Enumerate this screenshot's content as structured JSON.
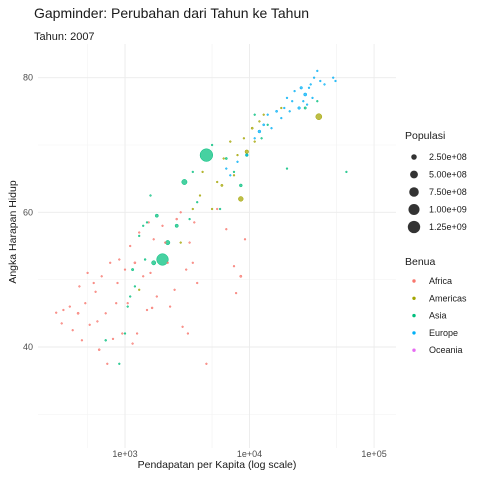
{
  "chart_data": {
    "type": "scatter",
    "title": "Gapminder: Perubahan dari Tahun ke Tahun",
    "subtitle": "Tahun: 2007",
    "xlabel": "Pendapatan per Kapita (log scale)",
    "ylabel": "Angka Harapan Hidup",
    "x_scale": "log10",
    "xlim": [
      200,
      150000
    ],
    "ylim": [
      25,
      85
    ],
    "x_ticks": [
      1000,
      10000,
      100000
    ],
    "x_tick_labels": [
      "1e+03",
      "1e+04",
      "1e+05"
    ],
    "y_ticks": [
      40,
      60,
      80
    ],
    "y_tick_labels": [
      "40",
      "60",
      "80"
    ],
    "grid": true,
    "legend_position": "right",
    "size_legend": {
      "title": "Populasi",
      "entries": [
        {
          "label": "2.50e+08",
          "value": 250000000
        },
        {
          "label": "5.00e+08",
          "value": 500000000
        },
        {
          "label": "7.50e+08",
          "value": 750000000
        },
        {
          "label": "1.00e+09",
          "value": 1000000000
        },
        {
          "label": "1.25e+09",
          "value": 1250000000
        }
      ]
    },
    "color_legend": {
      "title": "Benua",
      "entries": [
        {
          "label": "Africa",
          "color": "#F8766D"
        },
        {
          "label": "Americas",
          "color": "#A3A500"
        },
        {
          "label": "Asia",
          "color": "#00BF7D"
        },
        {
          "label": "Europe",
          "color": "#00B0F6"
        },
        {
          "label": "Oceania",
          "color": "#E76BF3"
        }
      ]
    },
    "series": [
      {
        "name": "Africa",
        "color": "#F8766D",
        "points": [
          {
            "x": 280,
            "y": 45.1,
            "pop": 20000000
          },
          {
            "x": 310,
            "y": 43.5,
            "pop": 8000000
          },
          {
            "x": 320,
            "y": 45.5,
            "pop": 12000000
          },
          {
            "x": 360,
            "y": 46.0,
            "pop": 15000000
          },
          {
            "x": 380,
            "y": 42.5,
            "pop": 8000000
          },
          {
            "x": 420,
            "y": 45.0,
            "pop": 40000000
          },
          {
            "x": 430,
            "y": 49.0,
            "pop": 5000000
          },
          {
            "x": 450,
            "y": 41.0,
            "pop": 9000000
          },
          {
            "x": 480,
            "y": 46.5,
            "pop": 6000000
          },
          {
            "x": 500,
            "y": 51.0,
            "pop": 3000000
          },
          {
            "x": 520,
            "y": 43.3,
            "pop": 25000000
          },
          {
            "x": 560,
            "y": 49.5,
            "pop": 10000000
          },
          {
            "x": 580,
            "y": 48.2,
            "pop": 4000000
          },
          {
            "x": 600,
            "y": 43.8,
            "pop": 12000000
          },
          {
            "x": 620,
            "y": 39.6,
            "pop": 35000000
          },
          {
            "x": 650,
            "y": 50.5,
            "pop": 8000000
          },
          {
            "x": 700,
            "y": 45.0,
            "pop": 5000000
          },
          {
            "x": 720,
            "y": 37.5,
            "pop": 3000000
          },
          {
            "x": 760,
            "y": 52.5,
            "pop": 7000000
          },
          {
            "x": 800,
            "y": 41.2,
            "pop": 6000000
          },
          {
            "x": 850,
            "y": 46.5,
            "pop": 11000000
          },
          {
            "x": 870,
            "y": 49.5,
            "pop": 5000000
          },
          {
            "x": 900,
            "y": 53.0,
            "pop": 14000000
          },
          {
            "x": 950,
            "y": 42.0,
            "pop": 6000000
          },
          {
            "x": 1000,
            "y": 51.5,
            "pop": 9000000
          },
          {
            "x": 1050,
            "y": 46.5,
            "pop": 4000000
          },
          {
            "x": 1100,
            "y": 55.0,
            "pop": 7000000
          },
          {
            "x": 1150,
            "y": 40.5,
            "pop": 3000000
          },
          {
            "x": 1200,
            "y": 52.5,
            "pop": 38000000
          },
          {
            "x": 1250,
            "y": 42.0,
            "pop": 10000000
          },
          {
            "x": 1300,
            "y": 57.0,
            "pop": 6000000
          },
          {
            "x": 1400,
            "y": 50.5,
            "pop": 5000000
          },
          {
            "x": 1500,
            "y": 45.5,
            "pop": 20000000
          },
          {
            "x": 1550,
            "y": 58.5,
            "pop": 4000000
          },
          {
            "x": 1600,
            "y": 51.0,
            "pop": 3000000
          },
          {
            "x": 1650,
            "y": 45.8,
            "pop": 33000000
          },
          {
            "x": 1700,
            "y": 56.0,
            "pop": 3000000
          },
          {
            "x": 1800,
            "y": 47.5,
            "pop": 2000000
          },
          {
            "x": 2000,
            "y": 58.0,
            "pop": 8000000
          },
          {
            "x": 2100,
            "y": 55.5,
            "pop": 3000000
          },
          {
            "x": 2200,
            "y": 52.5,
            "pop": 3000000
          },
          {
            "x": 2300,
            "y": 46.0,
            "pop": 2000000
          },
          {
            "x": 2500,
            "y": 48.5,
            "pop": 1000000
          },
          {
            "x": 2600,
            "y": 59.0,
            "pop": 33000000
          },
          {
            "x": 2800,
            "y": 60.0,
            "pop": 12000000
          },
          {
            "x": 2900,
            "y": 43.0,
            "pop": 1500000
          },
          {
            "x": 3100,
            "y": 51.5,
            "pop": 2000000
          },
          {
            "x": 3200,
            "y": 42.0,
            "pop": 1200000
          },
          {
            "x": 3300,
            "y": 55.5,
            "pop": 2500000
          },
          {
            "x": 3500,
            "y": 52.5,
            "pop": 1000000
          },
          {
            "x": 3600,
            "y": 58.5,
            "pop": 18000000
          },
          {
            "x": 3800,
            "y": 49.5,
            "pop": 3000000
          },
          {
            "x": 4500,
            "y": 37.5,
            "pop": 9000000
          },
          {
            "x": 5500,
            "y": 60.5,
            "pop": 3000000
          },
          {
            "x": 6500,
            "y": 57.5,
            "pop": 2000000
          },
          {
            "x": 7500,
            "y": 52.0,
            "pop": 3000000
          },
          {
            "x": 7800,
            "y": 48.0,
            "pop": 2000000
          },
          {
            "x": 8500,
            "y": 50.5,
            "pop": 44000000
          },
          {
            "x": 9200,
            "y": 56.0,
            "pop": 1500000
          }
        ]
      },
      {
        "name": "Americas",
        "color": "#A3A500",
        "points": [
          {
            "x": 1300,
            "y": 48.5,
            "pop": 8000000
          },
          {
            "x": 2800,
            "y": 55.5,
            "pop": 9000000
          },
          {
            "x": 3500,
            "y": 60.5,
            "pop": 11000000
          },
          {
            "x": 4000,
            "y": 62.5,
            "pop": 15000000
          },
          {
            "x": 4200,
            "y": 66.0,
            "pop": 7000000
          },
          {
            "x": 5000,
            "y": 60.5,
            "pop": 20000000
          },
          {
            "x": 5500,
            "y": 64.5,
            "pop": 12000000
          },
          {
            "x": 6000,
            "y": 64.0,
            "pop": 44000000
          },
          {
            "x": 6200,
            "y": 68.0,
            "pop": 5000000
          },
          {
            "x": 7000,
            "y": 70.5,
            "pop": 28000000
          },
          {
            "x": 7500,
            "y": 65.5,
            "pop": 4000000
          },
          {
            "x": 8000,
            "y": 68.5,
            "pop": 9000000
          },
          {
            "x": 8500,
            "y": 62.0,
            "pop": 190000000
          },
          {
            "x": 9000,
            "y": 71.0,
            "pop": 3000000
          },
          {
            "x": 9500,
            "y": 69.0,
            "pop": 108000000
          },
          {
            "x": 10500,
            "y": 72.5,
            "pop": 40000000
          },
          {
            "x": 11000,
            "y": 70.5,
            "pop": 16000000
          },
          {
            "x": 12000,
            "y": 73.5,
            "pop": 4000000
          },
          {
            "x": 13000,
            "y": 74.5,
            "pop": 3000000
          },
          {
            "x": 18000,
            "y": 75.5,
            "pop": 1000000
          },
          {
            "x": 36000,
            "y": 74.2,
            "pop": 301000000
          }
        ]
      },
      {
        "name": "Asia",
        "color": "#00BF7D",
        "points": [
          {
            "x": 700,
            "y": 41.0,
            "pop": 31000000
          },
          {
            "x": 900,
            "y": 37.5,
            "pop": 23000000
          },
          {
            "x": 1000,
            "y": 42.0,
            "pop": 5000000
          },
          {
            "x": 1050,
            "y": 46.0,
            "pop": 8000000
          },
          {
            "x": 1100,
            "y": 47.5,
            "pop": 10000000
          },
          {
            "x": 1150,
            "y": 51.5,
            "pop": 50000000
          },
          {
            "x": 1200,
            "y": 49.0,
            "pop": 15000000
          },
          {
            "x": 1300,
            "y": 56.5,
            "pop": 6000000
          },
          {
            "x": 1400,
            "y": 58.0,
            "pop": 3000000
          },
          {
            "x": 1450,
            "y": 53.0,
            "pop": 30000000
          },
          {
            "x": 1500,
            "y": 58.5,
            "pop": 3000000
          },
          {
            "x": 1600,
            "y": 62.5,
            "pop": 2000000
          },
          {
            "x": 1700,
            "y": 52.5,
            "pop": 150000000
          },
          {
            "x": 1800,
            "y": 59.5,
            "pop": 85000000
          },
          {
            "x": 2000,
            "y": 53.0,
            "pop": 1110000000
          },
          {
            "x": 2200,
            "y": 55.5,
            "pop": 160000000
          },
          {
            "x": 2600,
            "y": 58.0,
            "pop": 90000000
          },
          {
            "x": 3000,
            "y": 64.5,
            "pop": 230000000
          },
          {
            "x": 3300,
            "y": 59.0,
            "pop": 8000000
          },
          {
            "x": 3500,
            "y": 66.0,
            "pop": 15000000
          },
          {
            "x": 3800,
            "y": 61.5,
            "pop": 5000000
          },
          {
            "x": 4500,
            "y": 68.5,
            "pop": 1320000000
          },
          {
            "x": 5000,
            "y": 70.0,
            "pop": 6000000
          },
          {
            "x": 5800,
            "y": 60.5,
            "pop": 3000000
          },
          {
            "x": 6500,
            "y": 68.0,
            "pop": 40000000
          },
          {
            "x": 7500,
            "y": 66.0,
            "pop": 20000000
          },
          {
            "x": 8500,
            "y": 64.0,
            "pop": 70000000
          },
          {
            "x": 9500,
            "y": 68.5,
            "pop": 65000000
          },
          {
            "x": 11000,
            "y": 74.5,
            "pop": 24000000
          },
          {
            "x": 12500,
            "y": 71.0,
            "pop": 1000000
          },
          {
            "x": 14000,
            "y": 73.0,
            "pop": 2000000
          },
          {
            "x": 20000,
            "y": 66.5,
            "pop": 3000000
          },
          {
            "x": 28000,
            "y": 75.5,
            "pop": 49000000
          },
          {
            "x": 35000,
            "y": 76.5,
            "pop": 1000000
          },
          {
            "x": 60000,
            "y": 66.0,
            "pop": 3000000
          }
        ]
      },
      {
        "name": "Europe",
        "color": "#00B0F6",
        "points": [
          {
            "x": 6500,
            "y": 66.5,
            "pop": 5000000
          },
          {
            "x": 7000,
            "y": 65.5,
            "pop": 10000000
          },
          {
            "x": 8000,
            "y": 67.5,
            "pop": 4000000
          },
          {
            "x": 9500,
            "y": 68.5,
            "pop": 3000000
          },
          {
            "x": 11000,
            "y": 71.0,
            "pop": 10000000
          },
          {
            "x": 12000,
            "y": 72.0,
            "pop": 70000000
          },
          {
            "x": 13000,
            "y": 73.0,
            "pop": 38000000
          },
          {
            "x": 14000,
            "y": 74.5,
            "pop": 10000000
          },
          {
            "x": 15000,
            "y": 72.5,
            "pop": 5000000
          },
          {
            "x": 16500,
            "y": 75.0,
            "pop": 40000000
          },
          {
            "x": 18000,
            "y": 74.0,
            "pop": 10000000
          },
          {
            "x": 19000,
            "y": 75.5,
            "pop": 2000000
          },
          {
            "x": 20000,
            "y": 77.0,
            "pop": 1000000
          },
          {
            "x": 21000,
            "y": 75.0,
            "pop": 20000000
          },
          {
            "x": 22000,
            "y": 76.5,
            "pop": 8000000
          },
          {
            "x": 23000,
            "y": 78.0,
            "pop": 3000000
          },
          {
            "x": 25000,
            "y": 75.5,
            "pop": 60000000
          },
          {
            "x": 26000,
            "y": 78.5,
            "pop": 58000000
          },
          {
            "x": 27000,
            "y": 76.5,
            "pop": 5000000
          },
          {
            "x": 28000,
            "y": 77.5,
            "pop": 82000000
          },
          {
            "x": 29000,
            "y": 76.0,
            "pop": 8000000
          },
          {
            "x": 30000,
            "y": 78.5,
            "pop": 9000000
          },
          {
            "x": 31000,
            "y": 79.0,
            "pop": 7000000
          },
          {
            "x": 32000,
            "y": 77.0,
            "pop": 11000000
          },
          {
            "x": 33000,
            "y": 80.0,
            "pop": 4000000
          },
          {
            "x": 35000,
            "y": 81.0,
            "pop": 300000
          },
          {
            "x": 37000,
            "y": 79.5,
            "pop": 7500000
          },
          {
            "x": 40000,
            "y": 79.0,
            "pop": 4500000
          },
          {
            "x": 47000,
            "y": 80.0,
            "pop": 4600000
          },
          {
            "x": 49000,
            "y": 79.5,
            "pop": 4000000
          }
        ]
      },
      {
        "name": "Oceania",
        "color": "#E76BF3",
        "points": []
      }
    ]
  }
}
